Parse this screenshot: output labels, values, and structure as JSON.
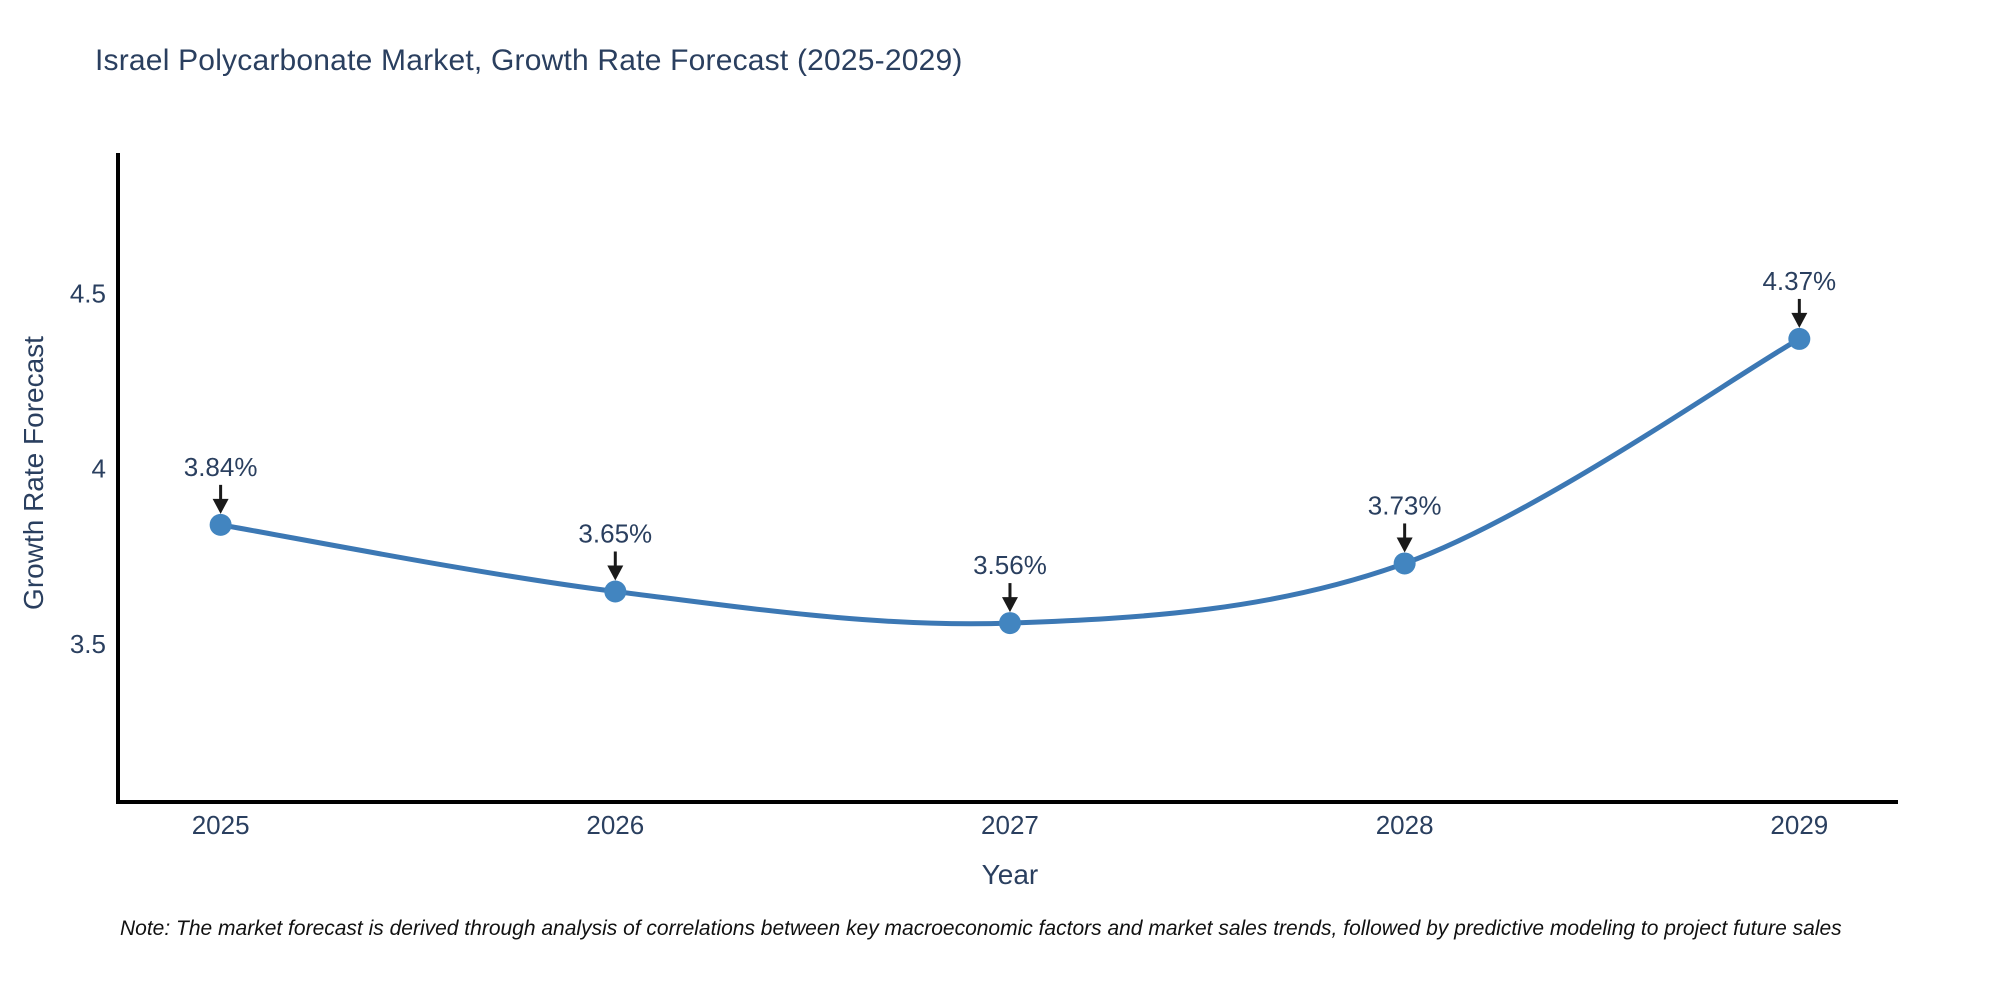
{
  "title": "Israel Polycarbonate Market, Growth Rate Forecast (2025-2029)",
  "note": "Note: The market forecast is derived through analysis of correlations between key macroeconomic factors and market sales trends, followed by predictive modeling to project future sales",
  "colors": {
    "line": "#3c78b4",
    "marker": "#4285c0",
    "axis": "#000000",
    "text": "#2a3f5f",
    "arrow": "#1a1a1a",
    "note_text": "#111111",
    "background": "#ffffff"
  },
  "chart_data": {
    "type": "line",
    "line_shape": "spline",
    "x": [
      2025,
      2026,
      2027,
      2028,
      2029
    ],
    "series": [
      {
        "name": "Growth Rate Forecast",
        "values": [
          3.84,
          3.65,
          3.56,
          3.73,
          4.37
        ]
      }
    ],
    "point_labels": [
      "3.84%",
      "3.65%",
      "3.56%",
      "3.73%",
      "4.37%"
    ],
    "title": "Israel Polycarbonate Market, Growth Rate Forecast (2025-2029)",
    "xlabel": "Year",
    "ylabel": "Growth Rate Forecast",
    "xlim": [
      2024.74,
      2029.25
    ],
    "ylim": [
      3.05,
      4.9
    ],
    "xtick_values": [
      2025,
      2026,
      2027,
      2028,
      2029
    ],
    "xtick_labels": [
      "2025",
      "2026",
      "2027",
      "2028",
      "2029"
    ],
    "ytick_values": [
      3.5,
      4,
      4.5
    ],
    "ytick_labels": [
      "3.5",
      "4",
      "4.5"
    ],
    "grid": false,
    "legend_position": "none",
    "annotations_have_arrows": true
  }
}
